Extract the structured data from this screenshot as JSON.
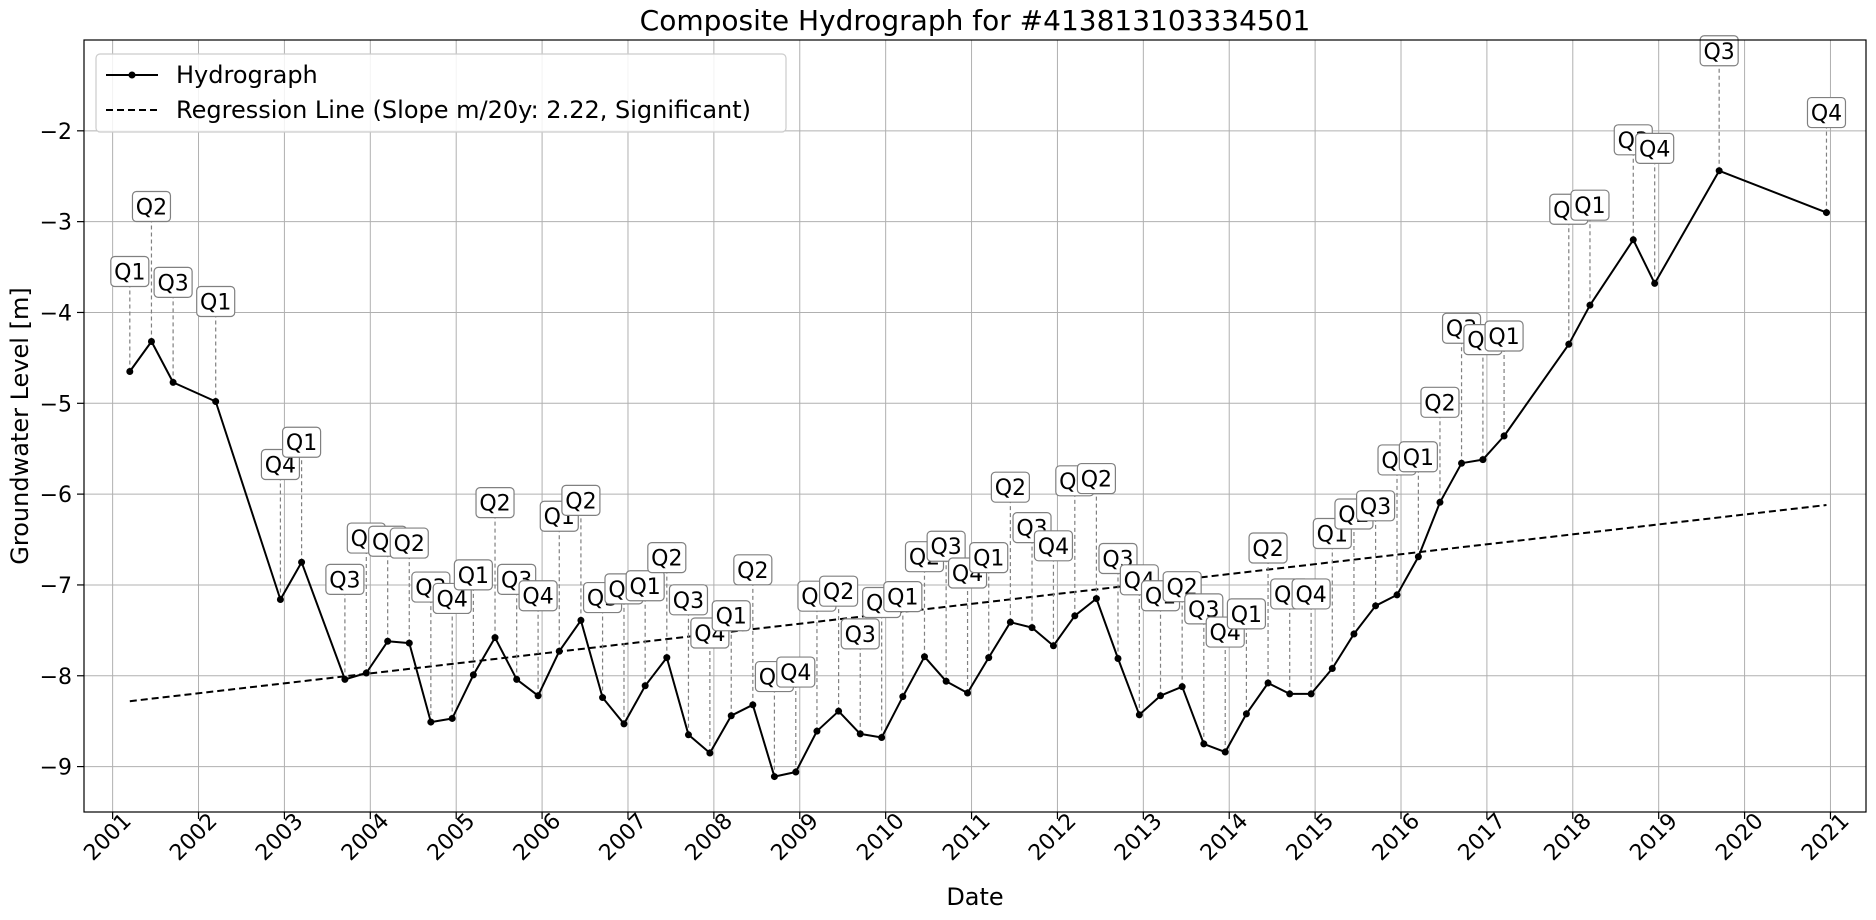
{
  "chart_data": {
    "type": "line",
    "title": "Composite Hydrograph for  #413813103334501",
    "xlabel": "Date",
    "ylabel": "Groundwater Level [m]",
    "xlim": [
      "2000-09-01",
      "2021-06-01"
    ],
    "ylim": [
      -9.5,
      -1.0
    ],
    "x_ticks": [
      "2001",
      "2002",
      "2003",
      "2004",
      "2005",
      "2006",
      "2007",
      "2008",
      "2009",
      "2010",
      "2011",
      "2012",
      "2013",
      "2014",
      "2015",
      "2016",
      "2017",
      "2018",
      "2019",
      "2020",
      "2021"
    ],
    "y_ticks": [
      -9,
      -8,
      -7,
      -6,
      -5,
      -4,
      -3,
      -2
    ],
    "y_tick_labels": [
      "−9",
      "−8",
      "−7",
      "−6",
      "−5",
      "−4",
      "−3",
      "−2"
    ],
    "grid": true,
    "legend_position": "top-left",
    "series": [
      {
        "name": "Hydrograph",
        "style": "solid-line-dot-markers",
        "color": "#000000",
        "points": [
          {
            "x": "2001-03-15",
            "y": -4.65,
            "label": "Q1"
          },
          {
            "x": "2001-06-15",
            "y": -4.32,
            "label": "Q2"
          },
          {
            "x": "2001-09-15",
            "y": -4.77,
            "label": "Q3"
          },
          {
            "x": "2002-03-15",
            "y": -4.98,
            "label": "Q1"
          },
          {
            "x": "2002-12-15",
            "y": -7.16,
            "label": "Q4"
          },
          {
            "x": "2003-03-15",
            "y": -6.75,
            "label": "Q1"
          },
          {
            "x": "2003-09-15",
            "y": -8.04,
            "label": "Q3"
          },
          {
            "x": "2003-12-15",
            "y": -7.97,
            "label": "Q4"
          },
          {
            "x": "2004-03-15",
            "y": -7.62,
            "label": "Q1"
          },
          {
            "x": "2004-06-15",
            "y": -7.64,
            "label": "Q2"
          },
          {
            "x": "2004-09-15",
            "y": -8.51,
            "label": "Q3"
          },
          {
            "x": "2004-12-15",
            "y": -8.47,
            "label": "Q4"
          },
          {
            "x": "2005-03-15",
            "y": -7.99,
            "label": "Q1"
          },
          {
            "x": "2005-06-15",
            "y": -7.58,
            "label": "Q2"
          },
          {
            "x": "2005-09-15",
            "y": -8.04,
            "label": "Q3"
          },
          {
            "x": "2005-12-15",
            "y": -8.22,
            "label": "Q4"
          },
          {
            "x": "2006-03-15",
            "y": -7.73,
            "label": "Q1"
          },
          {
            "x": "2006-06-15",
            "y": -7.39,
            "label": "Q2"
          },
          {
            "x": "2006-09-15",
            "y": -8.24,
            "label": "Q3"
          },
          {
            "x": "2006-12-15",
            "y": -8.53,
            "label": "Q4"
          },
          {
            "x": "2007-03-15",
            "y": -8.11,
            "label": "Q1"
          },
          {
            "x": "2007-06-15",
            "y": -7.8,
            "label": "Q2"
          },
          {
            "x": "2007-09-15",
            "y": -8.65,
            "label": "Q3"
          },
          {
            "x": "2007-12-15",
            "y": -8.85,
            "label": "Q4"
          },
          {
            "x": "2008-03-15",
            "y": -8.44,
            "label": "Q1"
          },
          {
            "x": "2008-06-15",
            "y": -8.32,
            "label": "Q2"
          },
          {
            "x": "2008-09-15",
            "y": -9.11,
            "label": "Q3"
          },
          {
            "x": "2008-12-15",
            "y": -9.06,
            "label": "Q4"
          },
          {
            "x": "2009-03-15",
            "y": -8.61,
            "label": "Q1"
          },
          {
            "x": "2009-06-15",
            "y": -8.39,
            "label": "Q2"
          },
          {
            "x": "2009-09-15",
            "y": -8.64,
            "label": "Q3"
          },
          {
            "x": "2009-12-15",
            "y": -8.68,
            "label": "Q4"
          },
          {
            "x": "2010-03-15",
            "y": -8.23,
            "label": "Q1"
          },
          {
            "x": "2010-06-15",
            "y": -7.79,
            "label": "Q2"
          },
          {
            "x": "2010-09-15",
            "y": -8.06,
            "label": "Q3"
          },
          {
            "x": "2010-12-15",
            "y": -8.19,
            "label": "Q4"
          },
          {
            "x": "2011-03-15",
            "y": -7.8,
            "label": "Q1"
          },
          {
            "x": "2011-06-15",
            "y": -7.41,
            "label": "Q2"
          },
          {
            "x": "2011-09-15",
            "y": -7.47,
            "label": "Q3"
          },
          {
            "x": "2011-12-15",
            "y": -7.67,
            "label": "Q4"
          },
          {
            "x": "2012-03-15",
            "y": -7.34,
            "label": "Q1"
          },
          {
            "x": "2012-06-15",
            "y": -7.15,
            "label": "Q2"
          },
          {
            "x": "2012-09-15",
            "y": -7.81,
            "label": "Q3"
          },
          {
            "x": "2012-12-15",
            "y": -8.43,
            "label": "Q4"
          },
          {
            "x": "2013-03-15",
            "y": -8.22,
            "label": "Q1"
          },
          {
            "x": "2013-06-15",
            "y": -8.12,
            "label": "Q2"
          },
          {
            "x": "2013-09-15",
            "y": -8.75,
            "label": "Q3"
          },
          {
            "x": "2013-12-15",
            "y": -8.84,
            "label": "Q4"
          },
          {
            "x": "2014-03-15",
            "y": -8.42,
            "label": "Q1"
          },
          {
            "x": "2014-06-15",
            "y": -8.08,
            "label": "Q2"
          },
          {
            "x": "2014-09-15",
            "y": -8.2,
            "label": "Q3"
          },
          {
            "x": "2014-12-15",
            "y": -8.2,
            "label": "Q4"
          },
          {
            "x": "2015-03-15",
            "y": -7.92,
            "label": "Q1"
          },
          {
            "x": "2015-06-15",
            "y": -7.54,
            "label": "Q2"
          },
          {
            "x": "2015-09-15",
            "y": -7.23,
            "label": "Q3"
          },
          {
            "x": "2015-12-15",
            "y": -7.11,
            "label": "Q4"
          },
          {
            "x": "2016-03-15",
            "y": -6.69,
            "label": "Q1"
          },
          {
            "x": "2016-06-15",
            "y": -6.09,
            "label": "Q2"
          },
          {
            "x": "2016-09-15",
            "y": -5.66,
            "label": "Q3"
          },
          {
            "x": "2016-12-15",
            "y": -5.62,
            "label": "Q4"
          },
          {
            "x": "2017-03-15",
            "y": -5.36,
            "label": "Q1"
          },
          {
            "x": "2017-12-15",
            "y": -4.35,
            "label": "Q4"
          },
          {
            "x": "2018-03-15",
            "y": -3.92,
            "label": "Q1"
          },
          {
            "x": "2018-09-15",
            "y": -3.2,
            "label": "Q3"
          },
          {
            "x": "2018-12-15",
            "y": -3.68,
            "label": "Q4"
          },
          {
            "x": "2019-09-15",
            "y": -2.44,
            "label": "Q3"
          },
          {
            "x": "2020-12-15",
            "y": -2.9,
            "label": "Q4"
          }
        ]
      },
      {
        "name": "Regression Line (Slope m/20y: 2.22, Significant)",
        "style": "dashed-line",
        "color": "#000000",
        "points": [
          {
            "x": "2001-03-15",
            "y": -8.28
          },
          {
            "x": "2020-12-15",
            "y": -6.12
          }
        ]
      }
    ]
  }
}
